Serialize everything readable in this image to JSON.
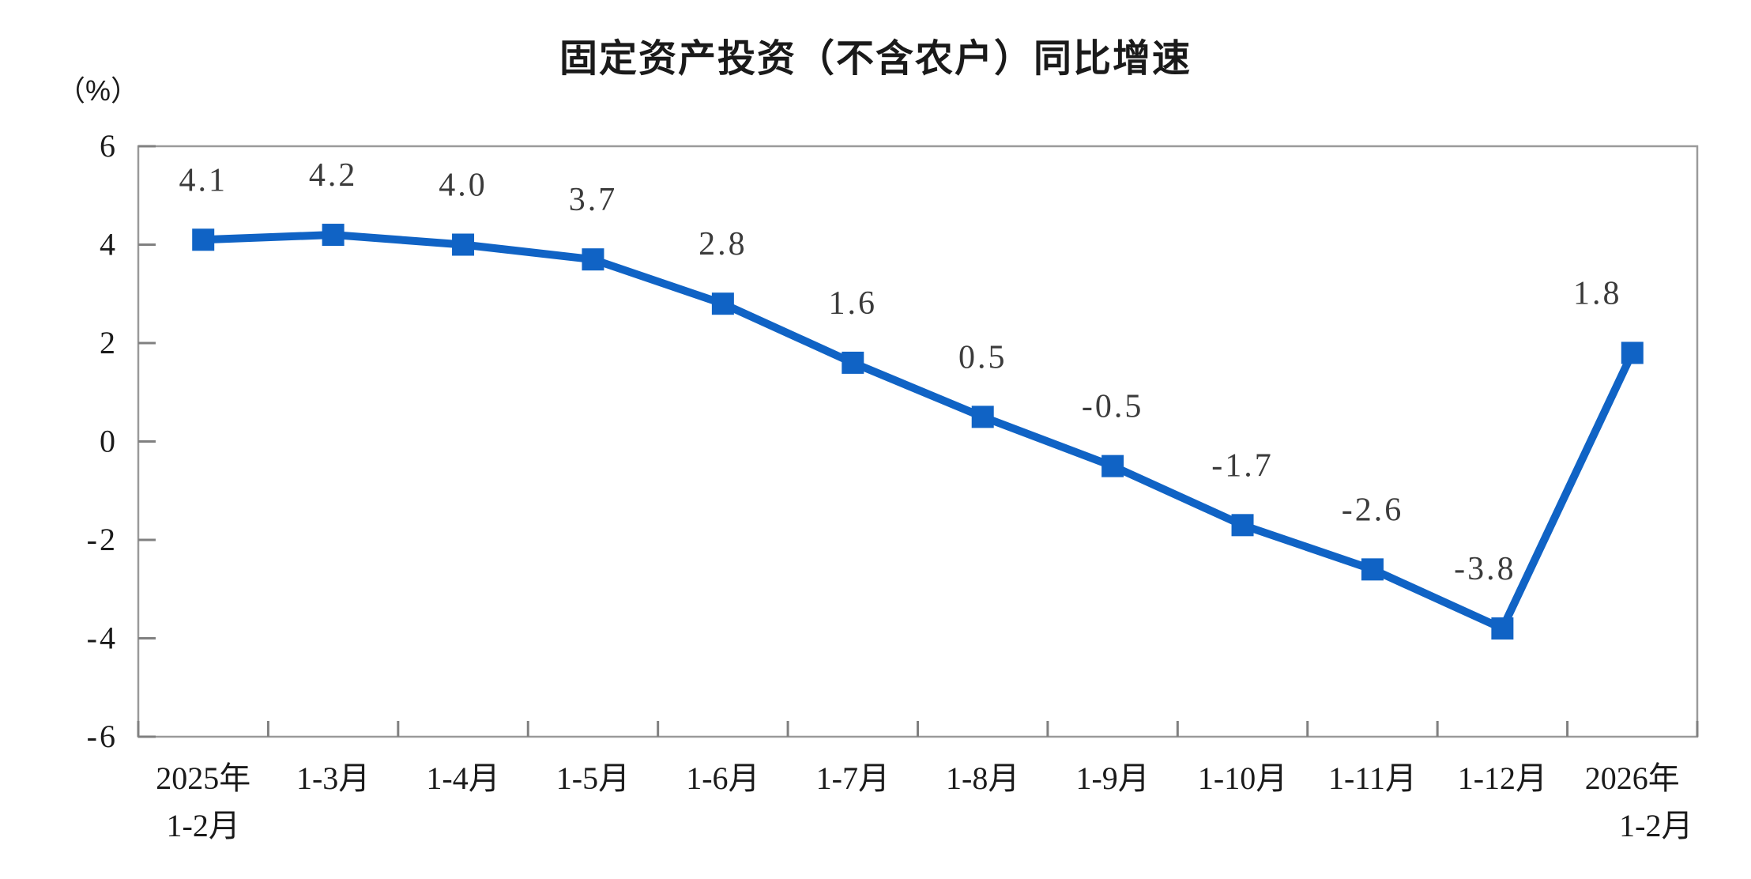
{
  "page": {
    "background": "#ffffff"
  },
  "chart_data": {
    "type": "line",
    "title": "固定资产投资（不含农户）同比增速",
    "unit_label": "（%）",
    "categories": [
      [
        "2025年",
        "1-2月"
      ],
      [
        "1-3月"
      ],
      [
        "1-4月"
      ],
      [
        "1-5月"
      ],
      [
        "1-6月"
      ],
      [
        "1-7月"
      ],
      [
        "1-8月"
      ],
      [
        "1-9月"
      ],
      [
        "1-10月"
      ],
      [
        "1-11月"
      ],
      [
        "1-12月"
      ],
      [
        "2026年",
        "1-2月"
      ]
    ],
    "values": [
      4.1,
      4.2,
      4.0,
      3.7,
      2.8,
      1.6,
      0.5,
      -0.5,
      -1.7,
      -2.6,
      -3.8,
      1.8
    ],
    "point_labels": [
      "4.1",
      "4.2",
      "4.0",
      "3.7",
      "2.8",
      "1.6",
      "0.5",
      "-0.5",
      "-1.7",
      "-2.6",
      "-3.8",
      "1.8"
    ],
    "ylim": [
      -6,
      6
    ],
    "yticks": [
      6,
      4,
      2,
      0,
      -2,
      -4,
      -6
    ],
    "xlabel": "",
    "ylabel": "（%）",
    "grid": false,
    "legend": "none",
    "marker": "square",
    "colors": {
      "line": "#1063C5",
      "marker": "#1063C5",
      "point_label": "#3b3b3b",
      "axis_box": "#9a9a9a",
      "tick": "#808080",
      "tick_label": "#1a1a1a",
      "title": "#1a1a1a"
    }
  }
}
